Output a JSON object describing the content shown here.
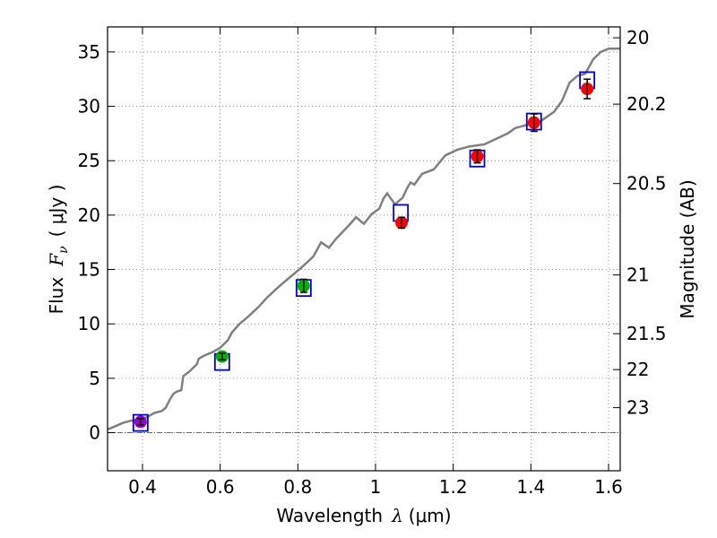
{
  "chart_data": {
    "type": "scatter",
    "xlabel": "Wavelength",
    "xlabel_symbol": "λ",
    "xlabel_unit": "(μm)",
    "ylabel": "Flux",
    "ylabel_symbol": "F",
    "ylabel_subscript": "ν",
    "ylabel_unit": "(  μJy )",
    "y2label": "Magnitude (AB)",
    "xlim": [
      0.31,
      1.63
    ],
    "ylim": [
      -3.5,
      37.3
    ],
    "x_ticks": [
      0.4,
      0.6,
      0.8,
      1.0,
      1.2,
      1.4,
      1.6
    ],
    "x_tick_labels": [
      "0.4",
      "0.6",
      "0.8",
      "1",
      "1.2",
      "1.4",
      "1.6"
    ],
    "y_ticks": [
      0,
      5,
      10,
      15,
      20,
      25,
      30,
      35
    ],
    "y_tick_labels": [
      "0",
      "5",
      "10",
      "15",
      "20",
      "25",
      "30",
      "35"
    ],
    "right_ticks": [
      {
        "label": "20",
        "flux": 36.3
      },
      {
        "label": "20.2",
        "flux": 30.2
      },
      {
        "label": "20.5",
        "flux": 22.9
      },
      {
        "label": "21",
        "flux": 14.5
      },
      {
        "label": "21.5",
        "flux": 9.1
      },
      {
        "label": "22",
        "flux": 5.8
      },
      {
        "label": "23",
        "flux": 2.3
      }
    ],
    "grid": true,
    "zero_line": true,
    "spectrum": {
      "color": "#808080",
      "x": [
        0.31,
        0.33,
        0.35,
        0.37,
        0.39,
        0.41,
        0.43,
        0.45,
        0.46,
        0.47,
        0.48,
        0.49,
        0.5,
        0.505,
        0.52,
        0.54,
        0.545,
        0.56,
        0.58,
        0.6,
        0.62,
        0.63,
        0.65,
        0.67,
        0.7,
        0.72,
        0.75,
        0.78,
        0.81,
        0.84,
        0.86,
        0.88,
        0.9,
        0.93,
        0.95,
        0.97,
        0.99,
        1.01,
        1.02,
        1.03,
        1.05,
        1.07,
        1.08,
        1.09,
        1.1,
        1.12,
        1.15,
        1.18,
        1.21,
        1.24,
        1.28,
        1.31,
        1.34,
        1.36,
        1.38,
        1.4,
        1.42,
        1.44,
        1.46,
        1.48,
        1.5,
        1.52,
        1.54,
        1.56,
        1.58,
        1.6,
        1.63
      ],
      "y": [
        0.3,
        0.6,
        0.9,
        1.1,
        1.2,
        1.4,
        1.8,
        2.0,
        2.3,
        3.0,
        3.6,
        3.8,
        3.9,
        5.2,
        5.6,
        6.3,
        6.8,
        7.1,
        7.4,
        7.8,
        8.5,
        9.2,
        10.0,
        10.6,
        11.6,
        12.4,
        13.4,
        14.3,
        15.2,
        16.2,
        17.5,
        17.0,
        17.9,
        19.0,
        19.8,
        19.2,
        20.1,
        20.6,
        21.5,
        22.0,
        21.0,
        21.6,
        22.4,
        23.0,
        22.8,
        23.8,
        24.2,
        25.5,
        26.0,
        26.3,
        26.5,
        27.0,
        27.5,
        28.0,
        28.2,
        28.4,
        28.5,
        29.0,
        29.5,
        30.5,
        32.2,
        32.8,
        33.0,
        34.3,
        35.0,
        35.3,
        35.3
      ]
    },
    "photometry": [
      {
        "x": 0.395,
        "y": 1.0,
        "err": 0.3,
        "color": "#9a00c8"
      },
      {
        "x": 0.605,
        "y": 7.0,
        "err": 0.3,
        "color": "#00b200"
      },
      {
        "x": 0.815,
        "y": 13.5,
        "err": 0.6,
        "color": "#00b200"
      },
      {
        "x": 1.067,
        "y": 19.3,
        "err": 0.5,
        "color": "#ff0000"
      },
      {
        "x": 1.262,
        "y": 25.4,
        "err": 0.6,
        "color": "#ff0000"
      },
      {
        "x": 1.408,
        "y": 28.5,
        "err": 0.8,
        "color": "#ff0000"
      },
      {
        "x": 1.545,
        "y": 31.6,
        "err": 0.9,
        "color": "#ff0000"
      }
    ],
    "model_boxes": {
      "color": "#0000cc",
      "points": [
        {
          "x": 0.395,
          "y": 0.9
        },
        {
          "x": 0.605,
          "y": 6.5
        },
        {
          "x": 0.815,
          "y": 13.3
        },
        {
          "x": 1.065,
          "y": 20.2
        },
        {
          "x": 1.262,
          "y": 25.2
        },
        {
          "x": 1.408,
          "y": 28.6
        },
        {
          "x": 1.545,
          "y": 32.4
        }
      ]
    }
  }
}
